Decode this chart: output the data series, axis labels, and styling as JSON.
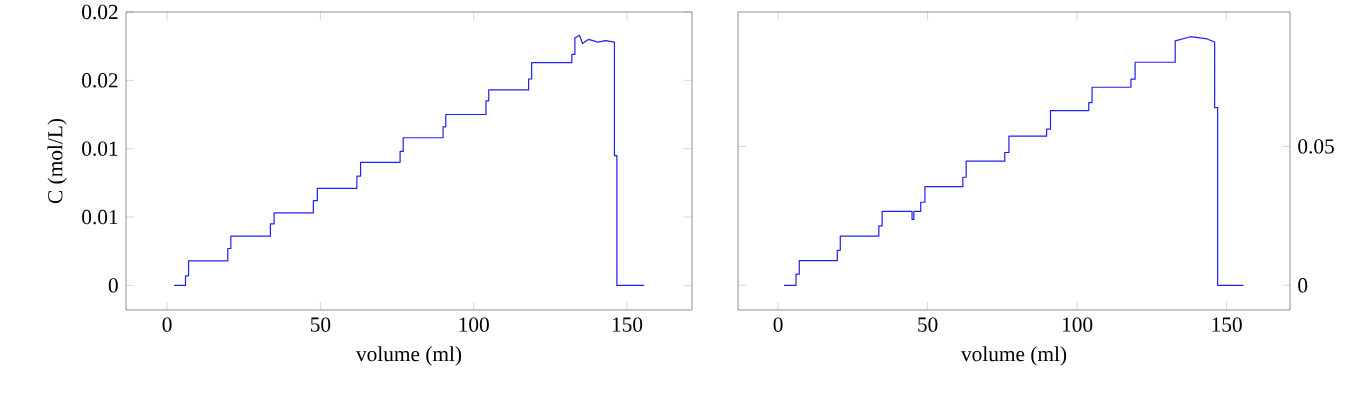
{
  "chart_data": [
    {
      "type": "line",
      "xlabel": "volume (ml)",
      "ylabel": "C (mol/L)",
      "xlim": [
        -13.4,
        171.2
      ],
      "ylim": [
        -0.0018,
        0.02
      ],
      "xticks": [
        0,
        50,
        100,
        150
      ],
      "yticks": [
        0,
        {
          "value": 0.005,
          "label": "0.01"
        },
        0.01,
        {
          "value": 0.015,
          "label": "0.02"
        },
        0.02
      ],
      "series": [
        {
          "color": "#2020f0",
          "x": [
            2.3,
            6.0,
            6.0,
            7.0,
            7.0,
            19.8,
            19.8,
            20.8,
            20.8,
            33.7,
            33.7,
            34.9,
            34.9,
            47.7,
            47.7,
            49,
            49,
            61.9,
            61.9,
            63.1,
            63.1,
            76,
            76,
            77,
            77,
            90,
            90,
            90.9,
            90.9,
            104,
            104,
            104.9,
            104.9,
            117.9,
            117.9,
            118.9,
            118.9,
            132,
            132,
            133,
            133,
            134.5,
            135.5,
            137.5,
            140.5,
            143,
            145.9,
            145.9,
            146.7,
            146.7,
            155.6
          ],
          "values": [
            0,
            0,
            0.0007,
            0.0007,
            0.0018,
            0.0018,
            0.0027,
            0.0027,
            0.0036,
            0.0036,
            0.0045,
            0.0045,
            0.0053,
            0.0053,
            0.0062,
            0.0062,
            0.0071,
            0.0071,
            0.008,
            0.008,
            0.009,
            0.009,
            0.0098,
            0.0098,
            0.0108,
            0.0108,
            0.0116,
            0.0116,
            0.0125,
            0.0125,
            0.0135,
            0.0135,
            0.0143,
            0.0143,
            0.0151,
            0.0151,
            0.0163,
            0.0163,
            0.0169,
            0.0169,
            0.0181,
            0.0183,
            0.0177,
            0.018,
            0.0178,
            0.0179,
            0.0178,
            0.0095,
            0.0095,
            0,
            0
          ]
        }
      ]
    },
    {
      "type": "line",
      "xlabel": "volume (ml)",
      "xlim": [
        -13.4,
        171.2
      ],
      "ylim": [
        -0.0089,
        0.0984
      ],
      "xticks": [
        0,
        50,
        100,
        150
      ],
      "yticks": [
        0,
        0.05
      ],
      "series": [
        {
          "color": "#2020f0",
          "x": [
            2,
            6,
            6,
            7.1,
            7.1,
            19.8,
            19.8,
            20.8,
            20.8,
            33.7,
            33.7,
            34.8,
            34.8,
            44.8,
            44.8,
            45.4,
            45.4,
            47.7,
            47.7,
            49.1,
            49.1,
            61.8,
            61.8,
            62.9,
            62.9,
            75.8,
            75.8,
            77.2,
            77.2,
            89.8,
            89.8,
            91.1,
            91.1,
            103.9,
            103.9,
            105,
            105,
            118,
            118,
            119.4,
            119.4,
            132.8,
            132.8,
            137.9,
            143.5,
            146,
            146,
            147,
            147,
            155.6
          ],
          "values": [
            0,
            0,
            0.004,
            0.004,
            0.0089,
            0.0089,
            0.0126,
            0.0126,
            0.0177,
            0.0177,
            0.0214,
            0.0214,
            0.0266,
            0.0266,
            0.0237,
            0.0237,
            0.0266,
            0.0266,
            0.0299,
            0.0299,
            0.0355,
            0.0355,
            0.0389,
            0.0389,
            0.0447,
            0.0447,
            0.0478,
            0.0478,
            0.0537,
            0.0537,
            0.0562,
            0.0562,
            0.0629,
            0.0629,
            0.0658,
            0.0658,
            0.0713,
            0.0713,
            0.0742,
            0.0742,
            0.0803,
            0.0803,
            0.088,
            0.0895,
            0.0887,
            0.0876,
            0.064,
            0.064,
            0,
            0
          ]
        }
      ]
    }
  ]
}
